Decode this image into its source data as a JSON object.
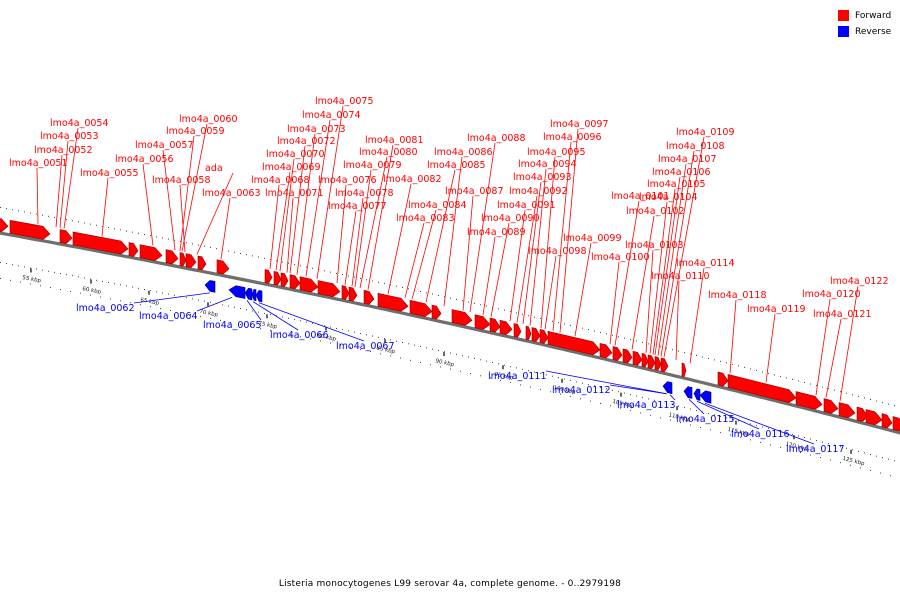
{
  "legend": {
    "forward": {
      "label": "Forward",
      "color": "#ff0000"
    },
    "reverse": {
      "label": "Reverse",
      "color": "#0000ff"
    }
  },
  "caption": "Listeria monocytogenes L99 serovar 4a, complete genome. - 0..2979198",
  "colors": {
    "forward": "#ff0000",
    "forward_dark": "#990000",
    "reverse": "#0000ff",
    "reverse_dark": "#000088",
    "backbone": "#6e6e6e"
  },
  "ticks": [
    "55 kbp",
    "60 kbp",
    "65 kbp",
    "70 kbp",
    "75 kbp",
    "80 kbp",
    "85 kbp",
    "90 kbp",
    "95 kbp",
    "100 kbp",
    "105 kbp",
    "110 kbp",
    "115 kbp",
    "120 kbp",
    "125 kbp"
  ],
  "forward_genes": [
    "lmo4a_0051",
    "lmo4a_0052",
    "lmo4a_0053",
    "lmo4a_0054",
    "lmo4a_0055",
    "lmo4a_0056",
    "lmo4a_0057",
    "lmo4a_0058",
    "lmo4a_0059",
    "lmo4a_0060",
    "ada",
    "lmo4a_0063",
    "lmo4a_0068",
    "lmo4a_0069",
    "lmo4a_0070",
    "lmo4a_0071",
    "lmo4a_0072",
    "lmo4a_0073",
    "lmo4a_0074",
    "lmo4a_0075",
    "lmo4a_0076",
    "lmo4a_0077",
    "lmo4a_0078",
    "lmo4a_0079",
    "lmo4a_0080",
    "lmo4a_0081",
    "lmo4a_0082",
    "lmo4a_0083",
    "lmo4a_0084",
    "lmo4a_0085",
    "lmo4a_0086",
    "lmo4a_0087",
    "lmo4a_0088",
    "lmo4a_0089",
    "lmo4a_0090",
    "lmo4a_0091",
    "lmo4a_0092",
    "lmo4a_0093",
    "lmo4a_0094",
    "lmo4a_0095",
    "lmo4a_0096",
    "lmo4a_0097",
    "lmo4a_0098",
    "lmo4a_0099",
    "lmo4a_0100",
    "lmo4a_0101",
    "lmo4a_0102",
    "lmo4a_0103",
    "lmo4a_0104",
    "lmo4a_0105",
    "lmo4a_0106",
    "lmo4a_0107",
    "lmo4a_0108",
    "lmo4a_0109",
    "lmo4a_0110",
    "lmo4a_0114",
    "lmo4a_0118",
    "lmo4a_0119",
    "lmo4a_0120",
    "lmo4a_0121",
    "lmo4a_0122"
  ],
  "reverse_genes": [
    "lmo4a_0062",
    "lmo4a_0064",
    "lmo4a_0065",
    "lmo4a_0066",
    "lmo4a_0067",
    "lmo4a_0111",
    "lmo4a_0112",
    "lmo4a_0113",
    "lmo4a_0115",
    "lmo4a_0116",
    "lmo4a_0117"
  ]
}
